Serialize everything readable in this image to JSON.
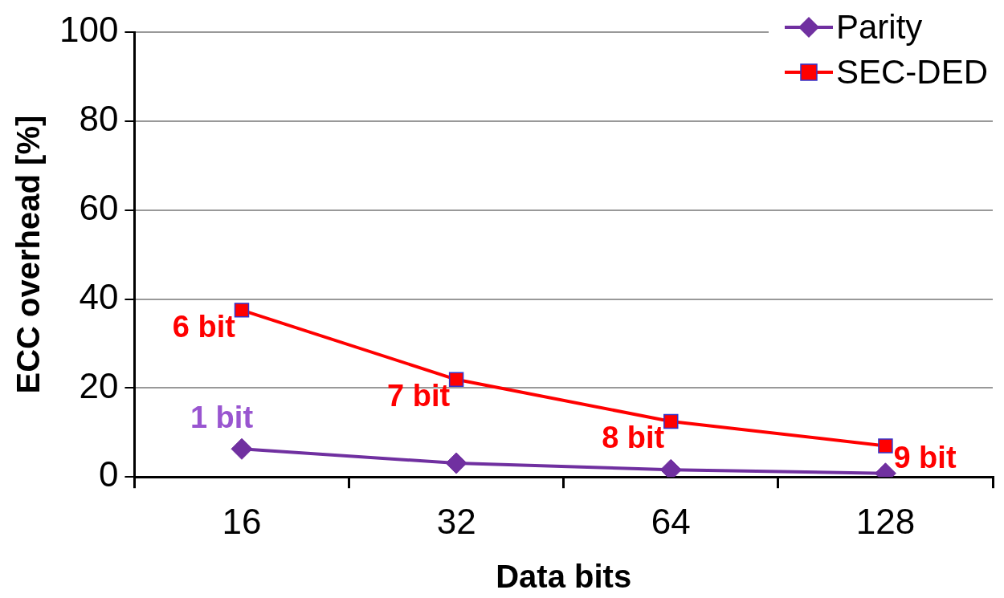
{
  "chart_data": {
    "type": "line",
    "xlabel": "Data bits",
    "ylabel": "ECC overhead [%]",
    "categories": [
      "16",
      "32",
      "64",
      "128"
    ],
    "series": [
      {
        "name": "Parity",
        "color": "#7030a0",
        "marker": "diamond",
        "values": [
          6.3,
          3.1,
          1.6,
          0.8
        ]
      },
      {
        "name": "SEC-DED",
        "color": "#ff0000",
        "marker": "square",
        "values": [
          37.5,
          21.9,
          12.5,
          7.0
        ]
      }
    ],
    "annotations": [
      {
        "text": "1 bit",
        "x": "16",
        "y": 6.3
      },
      {
        "text": "6 bit",
        "x": "16",
        "y": 37.5
      },
      {
        "text": "7 bit",
        "x": "32",
        "y": 21.9
      },
      {
        "text": "8 bit",
        "x": "64",
        "y": 12.5
      },
      {
        "text": "9 bit",
        "x": "128",
        "y": 7.0
      }
    ],
    "ylim": [
      0,
      100
    ],
    "yticks": [
      0,
      20,
      40,
      60,
      80,
      100
    ],
    "grid": "y",
    "legend": "top right",
    "line_style": "solid"
  }
}
